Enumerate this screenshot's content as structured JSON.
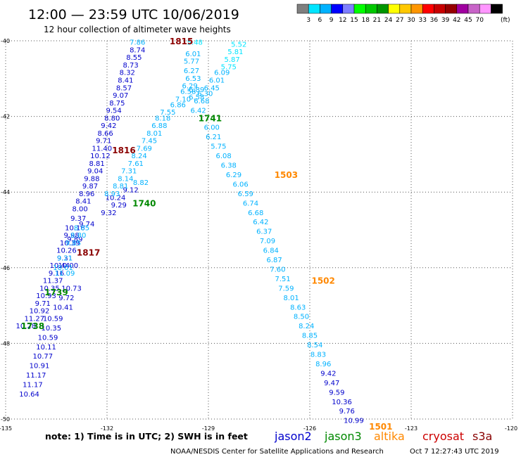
{
  "header": {
    "title": "12:00 — 23:59 UTC 10/06/2019",
    "subtitle": "12 hour collection of altimeter wave heights",
    "unit_label": "(ft)"
  },
  "legend_scale": {
    "colors": [
      "#7f7f7f",
      "#00e5ff",
      "#00b2ff",
      "#0000ff",
      "#7f7fff",
      "#00ff00",
      "#00c800",
      "#009600",
      "#ffff00",
      "#ffc800",
      "#ff9600",
      "#ff0000",
      "#c80000",
      "#960000",
      "#a000a0",
      "#c864c8",
      "#ff96ff",
      "#000000"
    ],
    "labels": [
      "3",
      "6",
      "9",
      "12",
      "15",
      "18",
      "21",
      "24",
      "27",
      "30",
      "33",
      "36",
      "39",
      "42",
      "45",
      "70"
    ]
  },
  "note": "note:  1) Time is in UTC; 2) SWH is in feet",
  "missions": [
    {
      "name": "jason2",
      "color": "#0000cc"
    },
    {
      "name": "jason3",
      "color": "#008800"
    },
    {
      "name": "altika",
      "color": "#ff8800"
    },
    {
      "name": "cryosat",
      "color": "#cc0000"
    },
    {
      "name": "s3a",
      "color": "#880000"
    }
  ],
  "credit": "NOAA/NESDIS Center for Satellite Applications and Research",
  "generated": "Oct  7 12:27:43 UTC 2019",
  "chart_data": {
    "type": "scatter",
    "xlim": [
      -135,
      -120
    ],
    "ylim": [
      -50,
      -40
    ],
    "x_ticks": [
      "-135",
      "-132",
      "-129",
      "-126",
      "-123",
      "-120"
    ],
    "x_tick_values": [
      -135,
      -132,
      -129,
      -126,
      -123,
      -120
    ],
    "y_ticks": [
      "-40",
      "-42",
      "-44",
      "-46",
      "-48",
      "-50"
    ],
    "y_tick_values": [
      -40,
      -42,
      -44,
      -46,
      -48,
      -50
    ],
    "grid": true,
    "tracks": [
      {
        "color": "#0000cc",
        "label_time": "1815",
        "label_color": "#8b0000",
        "label_at": [
          -129.8,
          -40.02
        ],
        "points": [
          [
            -131.1,
            -40.05,
            "7.86",
            "#00b2ff"
          ],
          [
            -131.1,
            -40.25,
            "8.74",
            "#0000cc"
          ],
          [
            -131.2,
            -40.45,
            "8.55",
            "#0000cc"
          ],
          [
            -131.3,
            -40.65,
            "8.73",
            "#0000cc"
          ],
          [
            -131.4,
            -40.85,
            "8.32",
            "#0000cc"
          ],
          [
            -131.45,
            -41.05,
            "8.41",
            "#0000cc"
          ],
          [
            -131.5,
            -41.25,
            "8.57",
            "#0000cc"
          ],
          [
            -131.6,
            -41.45,
            "9.07",
            "#0000cc"
          ],
          [
            -131.7,
            -41.65,
            "8.75",
            "#0000cc"
          ],
          [
            -131.8,
            -41.85,
            "9.54",
            "#0000cc"
          ],
          [
            -131.85,
            -42.05,
            "8.80",
            "#0000cc"
          ],
          [
            -131.95,
            -42.25,
            "9.42",
            "#0000cc"
          ],
          [
            -132.05,
            -42.45,
            "8.66",
            "#0000cc"
          ],
          [
            -132.1,
            -42.65,
            "9.71",
            "#0000cc"
          ],
          [
            -132.15,
            -42.85,
            "11.40",
            "#0000cc"
          ],
          [
            -132.2,
            -43.05,
            "10.12",
            "#0000cc"
          ],
          [
            -132.3,
            -43.25,
            "8.81",
            "#0000cc"
          ],
          [
            -132.35,
            -43.45,
            "9.04",
            "#0000cc"
          ],
          [
            -132.45,
            -43.65,
            "9.88",
            "#0000cc"
          ],
          [
            -132.5,
            -43.85,
            "9.87",
            "#0000cc"
          ],
          [
            -132.6,
            -44.05,
            "8.96",
            "#0000cc"
          ],
          [
            -132.7,
            -44.25,
            "8.41",
            "#0000cc"
          ],
          [
            -132.8,
            -44.45,
            "8.00",
            "#0000cc"
          ],
          [
            -132.85,
            -44.7,
            "9.37",
            "#0000cc"
          ],
          [
            -132.95,
            -44.95,
            "10.16",
            "#0000cc"
          ],
          [
            -133.05,
            -45.15,
            "9.98",
            "#0000cc"
          ],
          [
            -133.1,
            -45.35,
            "10.39",
            "#0000cc"
          ],
          [
            -133.2,
            -45.55,
            "10.26",
            "#0000cc"
          ],
          [
            -133.25,
            -45.75,
            "9.31",
            "#0000cc"
          ],
          [
            -133.4,
            -45.95,
            "10.44",
            "#0000cc"
          ],
          [
            -133.5,
            -46.15,
            "9.16",
            "#0000cc"
          ],
          [
            -133.6,
            -46.35,
            "11.37",
            "#0000cc"
          ],
          [
            -133.7,
            -46.55,
            "10.35",
            "#0000cc"
          ],
          [
            -133.8,
            -46.75,
            "10.93",
            "#0000cc"
          ],
          [
            -133.9,
            -46.95,
            "9.71",
            "#0000cc"
          ],
          [
            -134.0,
            -47.15,
            "10.92",
            "#0000cc"
          ],
          [
            -134.15,
            -47.35,
            "11.27",
            "#0000cc"
          ],
          [
            -134.4,
            -47.55,
            "10.28",
            "#0000cc"
          ]
        ]
      },
      {
        "color": "#0000cc",
        "label_time": "1816",
        "label_color": "#8b0000",
        "label_at": [
          -131.5,
          -42.9
        ],
        "points": [
          [
            -131.0,
            -43.75,
            "8.82",
            "#00b2ff"
          ],
          [
            -131.3,
            -43.95,
            "9.12",
            "#0000cc"
          ],
          [
            -131.75,
            -44.15,
            "10.24",
            "#0000cc"
          ],
          [
            -131.65,
            -44.35,
            "9.29",
            "#0000cc"
          ],
          [
            -131.95,
            -44.55,
            "9.32",
            "#0000cc"
          ],
          [
            -132.6,
            -44.85,
            "9.74",
            "#0000cc"
          ],
          [
            -132.95,
            -45.25,
            "9.89",
            "#0000cc"
          ],
          [
            -133.15,
            -45.95,
            "10.00",
            "#0000cc"
          ],
          [
            -133.25,
            -46.15,
            "11.09",
            "#00b2ff"
          ],
          [
            -133.05,
            -46.55,
            "10.73",
            "#0000cc"
          ],
          [
            -133.2,
            -46.8,
            "9.72",
            "#0000cc"
          ],
          [
            -133.3,
            -47.05,
            "10.41",
            "#0000cc"
          ],
          [
            -133.6,
            -47.35,
            "10.59",
            "#0000cc"
          ],
          [
            -133.65,
            -47.6,
            "10.35",
            "#0000cc"
          ],
          [
            -133.75,
            -47.85,
            "10.59",
            "#0000cc"
          ],
          [
            -133.8,
            -48.1,
            "10.11",
            "#0000cc"
          ],
          [
            -133.9,
            -48.35,
            "10.77",
            "#0000cc"
          ],
          [
            -134.0,
            -48.6,
            "10.91",
            "#0000cc"
          ],
          [
            -134.1,
            -48.85,
            "11.17",
            "#0000cc"
          ],
          [
            -134.2,
            -49.1,
            "11.17",
            "#0000cc"
          ],
          [
            -134.3,
            -49.35,
            "10.64",
            "#0000cc"
          ]
        ]
      },
      {
        "color": "#00b2ff",
        "label_time": "1817",
        "label_color": "#8b0000",
        "label_at": [
          -132.55,
          -45.6
        ],
        "points": [
          [
            -130.9,
            -42.85,
            "7.69",
            "#00b2ff"
          ],
          [
            -130.75,
            -42.65,
            "7.45",
            "#00b2ff"
          ],
          [
            -130.6,
            -42.45,
            "8.01",
            "#00b2ff"
          ],
          [
            -130.45,
            -42.25,
            "6.88",
            "#00b2ff"
          ],
          [
            -130.35,
            -42.05,
            "8.18",
            "#00b2ff"
          ],
          [
            -130.2,
            -41.9,
            "7.55",
            "#00b2ff"
          ],
          [
            -129.9,
            -41.7,
            "6.86",
            "#00b2ff"
          ],
          [
            -129.75,
            -41.55,
            "7.10",
            "#00b2ff"
          ],
          [
            -129.6,
            -41.35,
            "6.58",
            "#00b2ff"
          ],
          [
            -129.55,
            -41.2,
            "6.29",
            "#00b2ff"
          ],
          [
            -131.05,
            -43.05,
            "8.24",
            "#00b2ff"
          ],
          [
            -131.15,
            -43.25,
            "7.61",
            "#00b2ff"
          ],
          [
            -131.35,
            -43.45,
            "7.31",
            "#00b2ff"
          ],
          [
            -131.45,
            -43.65,
            "8.14",
            "#00b2ff"
          ],
          [
            -131.6,
            -43.85,
            "8.81",
            "#00b2ff"
          ],
          [
            -131.85,
            -44.05,
            "8.93",
            "#00b2ff"
          ],
          [
            -132.75,
            -44.95,
            "8.85",
            "#00b2ff"
          ],
          [
            -132.85,
            -45.15,
            "8.80",
            "#00b2ff"
          ],
          [
            -133.0,
            -45.35,
            "9.85",
            "#00b2ff"
          ],
          [
            -133.25,
            -45.75,
            "9.21",
            "#00b2ff"
          ],
          [
            -133.3,
            -46.0,
            "10.01",
            "#00b2ff"
          ]
        ]
      },
      {
        "color": "#00b2ff",
        "label_time": "1503",
        "label_color": "#ff8800",
        "label_at": [
          -126.7,
          -43.55
        ],
        "points": [
          [
            -128.1,
            -40.1,
            "5.52",
            "#00e5ff"
          ],
          [
            -128.2,
            -40.3,
            "5.81",
            "#00e5ff"
          ],
          [
            -128.3,
            -40.5,
            "5.87",
            "#00e5ff"
          ],
          [
            -128.4,
            -40.7,
            "5.75",
            "#00e5ff"
          ],
          [
            -128.6,
            -40.85,
            "6.09",
            "#00b2ff"
          ],
          [
            -128.75,
            -41.05,
            "6.01",
            "#00b2ff"
          ],
          [
            -128.9,
            -41.25,
            "6.45",
            "#00b2ff"
          ],
          [
            -129.1,
            -41.4,
            "6.30",
            "#00b2ff"
          ],
          [
            -129.2,
            -41.6,
            "6.68",
            "#00b2ff"
          ],
          [
            -129.3,
            -41.85,
            "6.42",
            "#00b2ff"
          ],
          [
            -129.4,
            -40.05,
            "5.48",
            "#00e5ff"
          ],
          [
            -129.45,
            -40.35,
            "6.01",
            "#00b2ff"
          ],
          [
            -129.5,
            -40.55,
            "5.77",
            "#00b2ff"
          ],
          [
            -129.5,
            -40.8,
            "6.27",
            "#00b2ff"
          ],
          [
            -129.45,
            -41.0,
            "6.53",
            "#00b2ff"
          ],
          [
            -129.35,
            -41.3,
            "6.89",
            "#00b2ff"
          ],
          [
            -129.35,
            -41.5,
            "6.58",
            "#00b2ff"
          ],
          [
            -128.9,
            -42.3,
            "6.00",
            "#00b2ff"
          ],
          [
            -128.85,
            -42.55,
            "6.21",
            "#00b2ff"
          ],
          [
            -128.7,
            -42.8,
            "5.75",
            "#00b2ff"
          ],
          [
            -128.55,
            -43.05,
            "6.08",
            "#00b2ff"
          ],
          [
            -128.4,
            -43.3,
            "6.38",
            "#00b2ff"
          ],
          [
            -128.25,
            -43.55,
            "6.29",
            "#00b2ff"
          ],
          [
            -128.05,
            -43.8,
            "6.06",
            "#00b2ff"
          ],
          [
            -127.9,
            -44.05,
            "6.59",
            "#00b2ff"
          ],
          [
            -127.75,
            -44.3,
            "6.74",
            "#00b2ff"
          ],
          [
            -127.6,
            -44.55,
            "6.68",
            "#00b2ff"
          ],
          [
            -127.45,
            -44.8,
            "6.42",
            "#00b2ff"
          ],
          [
            -127.35,
            -45.05,
            "6.37",
            "#00b2ff"
          ],
          [
            -127.25,
            -45.3,
            "7.09",
            "#00b2ff"
          ],
          [
            -127.15,
            -45.55,
            "6.84",
            "#00b2ff"
          ],
          [
            -127.05,
            -45.8,
            "6.87",
            "#00b2ff"
          ],
          [
            -126.95,
            -46.05,
            "7.60",
            "#00b2ff"
          ]
        ]
      },
      {
        "color": "#00b2ff",
        "label_time": "1502",
        "label_color": "#ff8800",
        "label_at": [
          -125.6,
          -46.35
        ],
        "points": [
          [
            -126.8,
            -46.3,
            "7.51",
            "#00b2ff"
          ],
          [
            -126.7,
            -46.55,
            "7.59",
            "#00b2ff"
          ],
          [
            -126.55,
            -46.8,
            "8.01",
            "#00b2ff"
          ],
          [
            -126.35,
            -47.05,
            "8.63",
            "#00b2ff"
          ],
          [
            -126.25,
            -47.3,
            "8.50",
            "#00b2ff"
          ],
          [
            -126.1,
            -47.55,
            "8.24",
            "#00b2ff"
          ],
          [
            -126.0,
            -47.8,
            "8.85",
            "#00b2ff"
          ],
          [
            -125.85,
            -48.05,
            "8.54",
            "#00b2ff"
          ],
          [
            -125.75,
            -48.3,
            "8.83",
            "#00b2ff"
          ],
          [
            -125.6,
            -48.55,
            "8.96",
            "#00b2ff"
          ],
          [
            -125.45,
            -48.8,
            "9.42",
            "#0000cc"
          ],
          [
            -125.35,
            -49.05,
            "9.47",
            "#0000cc"
          ],
          [
            -125.2,
            -49.3,
            "9.59",
            "#0000cc"
          ],
          [
            -125.05,
            -49.55,
            "10.36",
            "#0000cc"
          ],
          [
            -124.9,
            -49.8,
            "9.76",
            "#0000cc"
          ],
          [
            -124.7,
            -50.05,
            "10.99",
            "#0000cc"
          ]
        ]
      }
    ],
    "track_labels": [
      {
        "text": "1815",
        "color": "#8b0000",
        "at": [
          -129.8,
          -40.02
        ]
      },
      {
        "text": "1816",
        "color": "#8b0000",
        "at": [
          -131.5,
          -42.9
        ]
      },
      {
        "text": "1817",
        "color": "#8b0000",
        "at": [
          -132.55,
          -45.6
        ]
      },
      {
        "text": "1503",
        "color": "#ff8800",
        "at": [
          -126.7,
          -43.55
        ]
      },
      {
        "text": "1502",
        "color": "#ff8800",
        "at": [
          -125.6,
          -46.35
        ]
      },
      {
        "text": "1501",
        "color": "#ff8800",
        "at": [
          -123.9,
          -50.2
        ]
      },
      {
        "text": "1741",
        "color": "#008800",
        "at": [
          -128.95,
          -42.05
        ]
      },
      {
        "text": "1740",
        "color": "#008800",
        "at": [
          -130.9,
          -44.3
        ]
      },
      {
        "text": "1739",
        "color": "#008800",
        "at": [
          -133.5,
          -46.65
        ]
      },
      {
        "text": "1738",
        "color": "#008800",
        "at": [
          -134.2,
          -47.55
        ]
      }
    ]
  }
}
